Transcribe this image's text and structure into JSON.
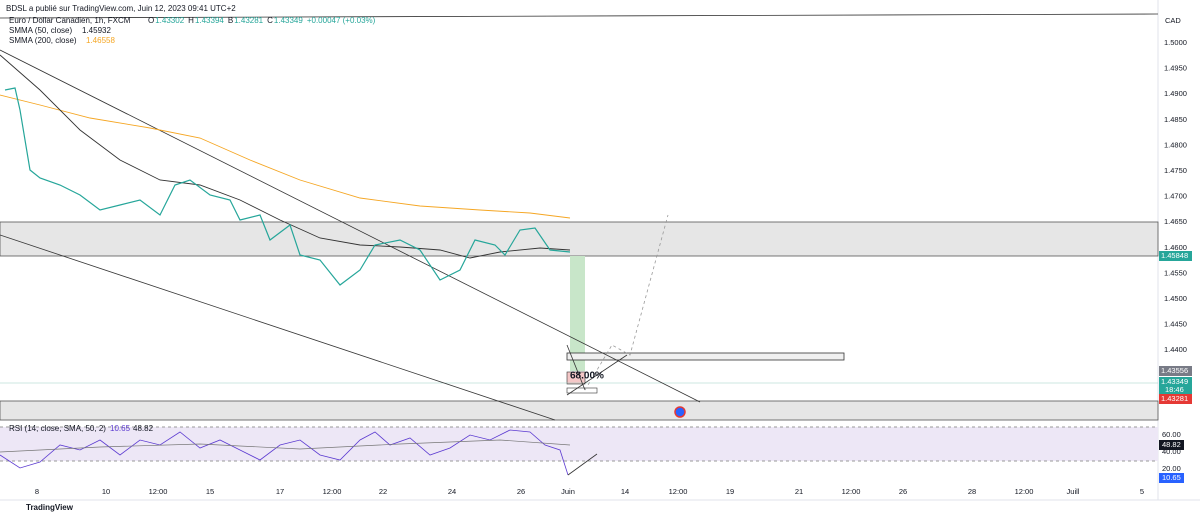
{
  "header": {
    "publisher": "BDSL a publié sur TradingView.com, Juin 12, 2023 09:41 UTC+2"
  },
  "legend": {
    "symbol": "Euro / Dollar Canadien, 1h, FXCM",
    "ohlc": [
      {
        "label": "O",
        "value": "1.43302"
      },
      {
        "label": "H",
        "value": "1.43394"
      },
      {
        "label": "B",
        "value": "1.43281"
      },
      {
        "label": "C",
        "value": "1.43349"
      }
    ],
    "change": "+0.00047 (+0.03%)",
    "indicators": [
      {
        "name": "SMMA (50, close)",
        "value": "1.45932"
      },
      {
        "name": "SMMA (200, close)",
        "value": "1.46558"
      }
    ]
  },
  "price_axis": {
    "currency": "CAD",
    "ticks": [
      "1.5000",
      "1.4950",
      "1.4900",
      "1.4850",
      "1.4800",
      "1.4750",
      "1.4700",
      "1.4650",
      "1.4600",
      "1.4550",
      "1.4500",
      "1.4450",
      "1.4400"
    ],
    "labels": [
      {
        "text": "1.45848"
      },
      {
        "text": "1.43556"
      },
      {
        "text": "1.43349",
        "sub": "18:46"
      },
      {
        "text": "1.43281"
      }
    ]
  },
  "rsi": {
    "title": "RSI (14, close, SMA, 50, 2)",
    "values": [
      "10.65",
      "48.82"
    ],
    "ticks": [
      "60.00",
      "40.00",
      "20.00"
    ]
  },
  "time_axis": [
    "8",
    "10",
    "12:00",
    "15",
    "17",
    "12:00",
    "22",
    "24",
    "26",
    "Juin",
    "14",
    "12:00",
    "19",
    "21",
    "12:00",
    "26",
    "28",
    "12:00",
    "Juill",
    "5"
  ],
  "drawing": {
    "percent": "68.00%"
  },
  "footer": {
    "brand": "TradingView"
  }
}
